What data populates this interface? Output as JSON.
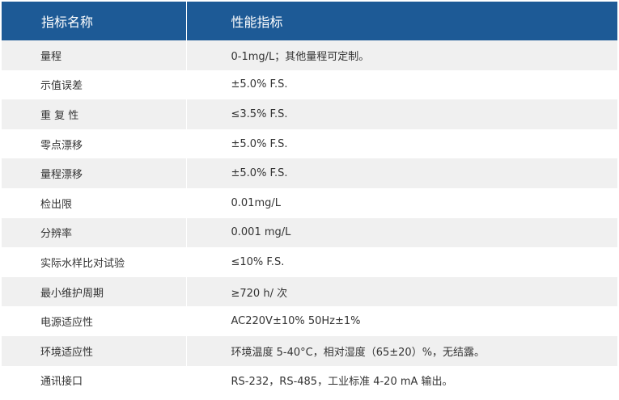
{
  "header": {
    "col_name": "指标名称",
    "col_value": "性能指标"
  },
  "rows": [
    {
      "name": "量程",
      "value": "0-1mg/L；其他量程可定制。"
    },
    {
      "name": "示值误差",
      "value": "±5.0% F.S."
    },
    {
      "name": "重 复 性",
      "value": "≤3.5% F.S."
    },
    {
      "name": "零点漂移",
      "value": "±5.0% F.S."
    },
    {
      "name": "量程漂移",
      "value": "±5.0% F.S."
    },
    {
      "name": "检出限",
      "value": "0.01mg/L"
    },
    {
      "name": "分辨率",
      "value": "0.001 mg/L"
    },
    {
      "name": "实际水样比对试验",
      "value": "≤10% F.S."
    },
    {
      "name": "最小维护周期",
      "value": "≥720 h/ 次"
    },
    {
      "name": "电源适应性",
      "value": "AC220V±10%   50Hz±1%"
    },
    {
      "name": "环境适应性",
      "value": "环境温度 5-40°C，相对湿度（65±20）%，无结露。"
    },
    {
      "name": "通讯接口",
      "value": "RS-232，RS-485，工业标准 4-20 mA 输出。"
    }
  ],
  "colors": {
    "header_bg": "#1d5a96",
    "row_odd_bg": "#f0f0f0",
    "row_even_bg": "#ffffff"
  }
}
